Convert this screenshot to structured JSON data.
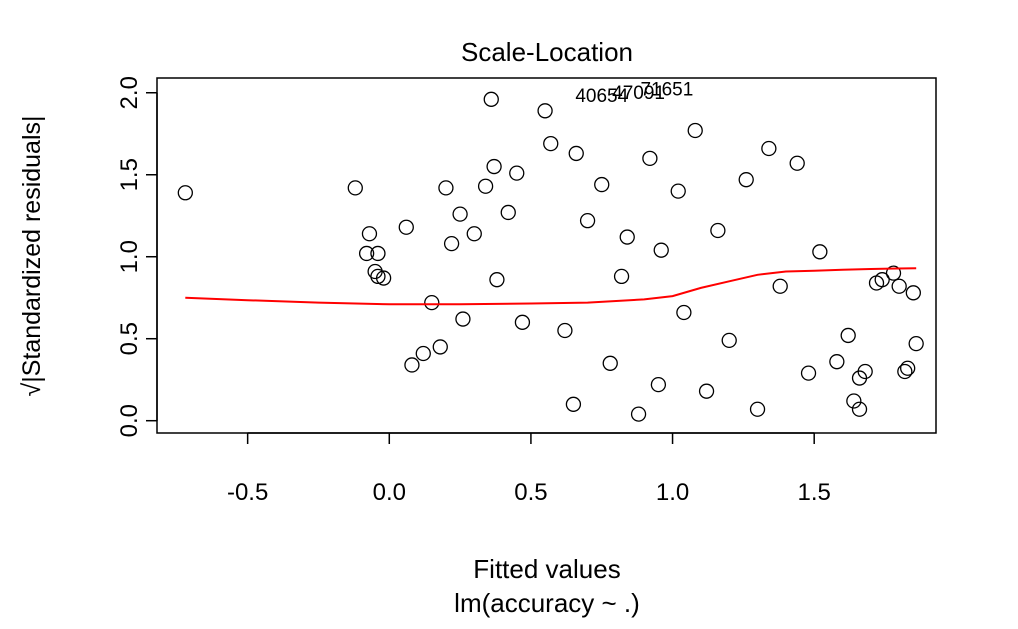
{
  "chart_data": {
    "type": "scatter",
    "title": "Scale-Location",
    "xlabel": "Fitted values",
    "subtitle": "lm(accuracy ~ .)",
    "ylabel": "√|Standardized residuals|",
    "xlim": [
      -0.82,
      1.93
    ],
    "ylim": [
      -0.075,
      2.09
    ],
    "x_ticks": [
      -0.5,
      0.0,
      0.5,
      1.0,
      1.5
    ],
    "x_tick_labels": [
      "-0.5",
      "0.0",
      "0.5",
      "1.0",
      "1.5"
    ],
    "y_ticks": [
      0.0,
      0.5,
      1.0,
      1.5,
      2.0
    ],
    "y_tick_labels": [
      "0.0",
      "0.5",
      "1.0",
      "1.5",
      "2.0"
    ],
    "grid": false,
    "point_style": "open-circle",
    "smooth_color": "#ff0000",
    "point_labels": [
      {
        "text": "40654",
        "x": 0.75,
        "y": 1.98
      },
      {
        "text": "47091",
        "x": 0.88,
        "y": 2.0
      },
      {
        "text": "71651",
        "x": 0.98,
        "y": 2.02
      }
    ],
    "smooth_line": {
      "x": [
        -0.72,
        -0.5,
        -0.25,
        0.0,
        0.25,
        0.5,
        0.7,
        0.9,
        1.0,
        1.1,
        1.2,
        1.3,
        1.4,
        1.5,
        1.6,
        1.7,
        1.86
      ],
      "y": [
        0.75,
        0.735,
        0.72,
        0.71,
        0.71,
        0.715,
        0.72,
        0.74,
        0.76,
        0.81,
        0.85,
        0.89,
        0.91,
        0.915,
        0.92,
        0.925,
        0.93
      ]
    },
    "points": [
      [
        -0.72,
        1.39
      ],
      [
        -0.12,
        1.42
      ],
      [
        -0.07,
        1.14
      ],
      [
        -0.04,
        1.02
      ],
      [
        -0.08,
        1.02
      ],
      [
        -0.04,
        0.88
      ],
      [
        -0.05,
        0.91
      ],
      [
        -0.02,
        0.87
      ],
      [
        0.06,
        1.18
      ],
      [
        0.08,
        0.34
      ],
      [
        0.12,
        0.41
      ],
      [
        0.15,
        0.72
      ],
      [
        0.18,
        0.45
      ],
      [
        0.2,
        1.42
      ],
      [
        0.22,
        1.08
      ],
      [
        0.25,
        1.26
      ],
      [
        0.26,
        0.62
      ],
      [
        0.3,
        1.14
      ],
      [
        0.34,
        1.43
      ],
      [
        0.36,
        1.96
      ],
      [
        0.37,
        1.55
      ],
      [
        0.38,
        0.86
      ],
      [
        0.42,
        1.27
      ],
      [
        0.45,
        1.51
      ],
      [
        0.47,
        0.6
      ],
      [
        0.55,
        1.89
      ],
      [
        0.57,
        1.69
      ],
      [
        0.62,
        0.55
      ],
      [
        0.65,
        0.1
      ],
      [
        0.66,
        1.63
      ],
      [
        0.7,
        1.22
      ],
      [
        0.75,
        1.44
      ],
      [
        0.78,
        0.35
      ],
      [
        0.82,
        0.88
      ],
      [
        0.84,
        1.12
      ],
      [
        0.88,
        0.04
      ],
      [
        0.92,
        1.6
      ],
      [
        0.95,
        0.22
      ],
      [
        0.96,
        1.04
      ],
      [
        1.02,
        1.4
      ],
      [
        1.04,
        0.66
      ],
      [
        1.08,
        1.77
      ],
      [
        1.12,
        0.18
      ],
      [
        1.16,
        1.16
      ],
      [
        1.2,
        0.49
      ],
      [
        1.26,
        1.47
      ],
      [
        1.3,
        0.07
      ],
      [
        1.34,
        1.66
      ],
      [
        1.38,
        0.82
      ],
      [
        1.44,
        1.57
      ],
      [
        1.48,
        0.29
      ],
      [
        1.52,
        1.03
      ],
      [
        1.58,
        0.36
      ],
      [
        1.62,
        0.52
      ],
      [
        1.64,
        0.12
      ],
      [
        1.66,
        0.07
      ],
      [
        1.66,
        0.26
      ],
      [
        1.68,
        0.3
      ],
      [
        1.72,
        0.84
      ],
      [
        1.74,
        0.86
      ],
      [
        1.78,
        0.9
      ],
      [
        1.8,
        0.82
      ],
      [
        1.82,
        0.3
      ],
      [
        1.83,
        0.32
      ],
      [
        1.85,
        0.78
      ],
      [
        1.86,
        0.47
      ]
    ]
  }
}
